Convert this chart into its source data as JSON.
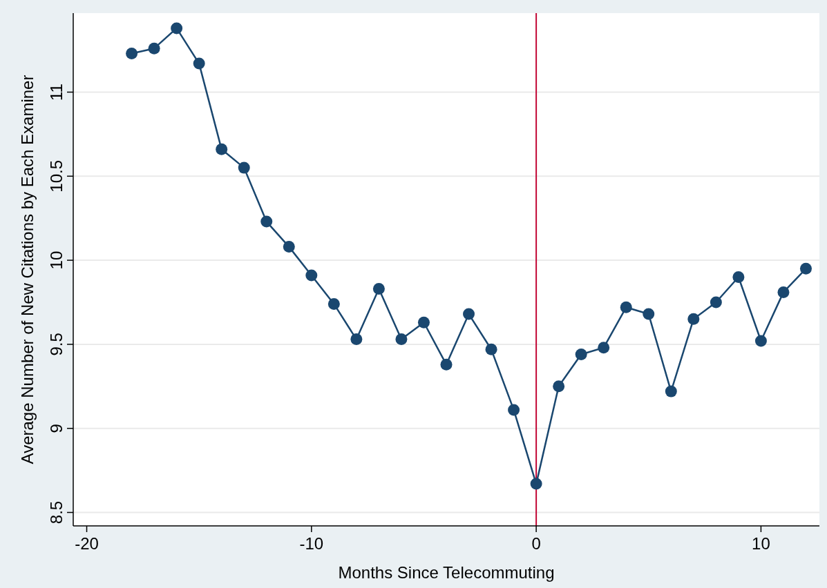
{
  "chart_data": {
    "type": "line",
    "xlabel": "Months Since Telecommuting",
    "ylabel": "Average Number of New Citations by Each Examiner",
    "x": [
      -18,
      -17,
      -16,
      -15,
      -14,
      -13,
      -12,
      -11,
      -10,
      -9,
      -8,
      -7,
      -6,
      -5,
      -4,
      -3,
      -2,
      -1,
      0,
      1,
      2,
      3,
      4,
      5,
      6,
      7,
      8,
      9,
      10,
      11,
      12
    ],
    "series": [
      {
        "color": "#1a476f",
        "values": [
          11.23,
          11.26,
          11.38,
          11.17,
          10.66,
          10.55,
          10.23,
          10.08,
          9.91,
          9.74,
          9.53,
          9.83,
          9.53,
          9.63,
          9.38,
          9.68,
          9.47,
          9.11,
          8.67,
          9.25,
          9.44,
          9.48,
          9.72,
          9.68,
          9.22,
          9.65,
          9.75,
          9.9,
          9.52,
          9.81,
          9.95
        ]
      }
    ],
    "xlim": [
      -20.6,
      12.6
    ],
    "xticks": [
      -20,
      -10,
      0,
      10
    ],
    "ylim": [
      8.42,
      11.47
    ],
    "yticks": [
      8.5,
      9,
      9.5,
      10,
      10.5,
      11
    ],
    "grid": "y",
    "marker": "circle",
    "line_style": "solid",
    "ref_lines": [
      {
        "axis": "x",
        "value": 0,
        "color": "#c10534"
      }
    ]
  }
}
